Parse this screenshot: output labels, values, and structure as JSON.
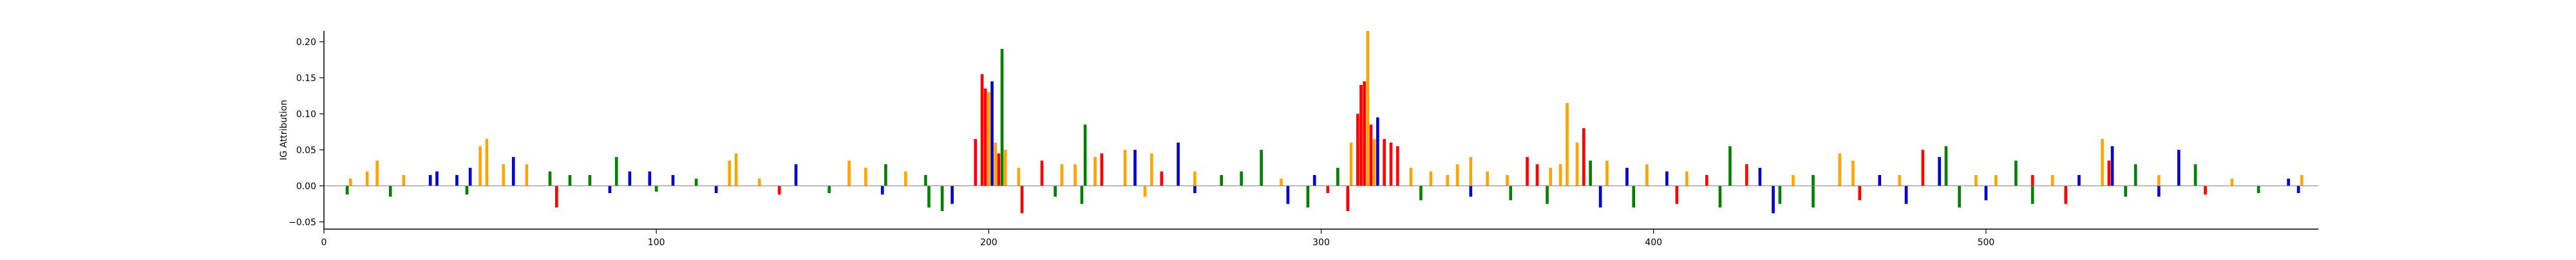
{
  "chart_data": {
    "type": "bar",
    "title": "",
    "xlabel": "",
    "ylabel": "IG Attribution",
    "xlim": [
      0,
      600
    ],
    "ylim": [
      -0.06,
      0.215
    ],
    "x_ticks": [
      0,
      100,
      200,
      300,
      400,
      500
    ],
    "y_ticks": [
      -0.05,
      0.0,
      0.05,
      0.1,
      0.15,
      0.2
    ],
    "y_tick_labels": [
      "−0.05",
      "0.00",
      "0.05",
      "0.10",
      "0.15",
      "0.20"
    ],
    "grid": false,
    "base_colors": {
      "A": "#008000",
      "C": "#0000cc",
      "G": "#ffa500",
      "T": "#ff0000"
    },
    "positions": [
      {
        "x": 8,
        "base": "G",
        "value": 0.01
      },
      {
        "x": 13,
        "base": "G",
        "value": 0.02
      },
      {
        "x": 16,
        "base": "G",
        "value": 0.035
      },
      {
        "x": 24,
        "base": "G",
        "value": 0.015
      },
      {
        "x": 32,
        "base": "C",
        "value": 0.015
      },
      {
        "x": 34,
        "base": "C",
        "value": 0.02
      },
      {
        "x": 40,
        "base": "C",
        "value": 0.015
      },
      {
        "x": 44,
        "base": "C",
        "value": 0.025
      },
      {
        "x": 47,
        "base": "G",
        "value": 0.055
      },
      {
        "x": 49,
        "base": "G",
        "value": 0.065
      },
      {
        "x": 54,
        "base": "G",
        "value": 0.03
      },
      {
        "x": 57,
        "base": "C",
        "value": 0.04
      },
      {
        "x": 61,
        "base": "G",
        "value": 0.03
      },
      {
        "x": 68,
        "base": "A",
        "value": 0.02
      },
      {
        "x": 74,
        "base": "A",
        "value": 0.015
      },
      {
        "x": 80,
        "base": "A",
        "value": 0.015
      },
      {
        "x": 88,
        "base": "A",
        "value": 0.04
      },
      {
        "x": 92,
        "base": "C",
        "value": 0.02
      },
      {
        "x": 98,
        "base": "C",
        "value": 0.02
      },
      {
        "x": 105,
        "base": "C",
        "value": 0.015
      },
      {
        "x": 112,
        "base": "A",
        "value": 0.01
      },
      {
        "x": 122,
        "base": "G",
        "value": 0.035
      },
      {
        "x": 124,
        "base": "G",
        "value": 0.045
      },
      {
        "x": 131,
        "base": "G",
        "value": 0.01
      },
      {
        "x": 142,
        "base": "C",
        "value": 0.03
      },
      {
        "x": 158,
        "base": "G",
        "value": 0.035
      },
      {
        "x": 163,
        "base": "G",
        "value": 0.025
      },
      {
        "x": 169,
        "base": "A",
        "value": 0.03
      },
      {
        "x": 175,
        "base": "G",
        "value": 0.02
      },
      {
        "x": 181,
        "base": "A",
        "value": 0.015
      },
      {
        "x": 196,
        "base": "T",
        "value": 0.065
      },
      {
        "x": 198,
        "base": "T",
        "value": 0.155
      },
      {
        "x": 199,
        "base": "T",
        "value": 0.135
      },
      {
        "x": 200,
        "base": "G",
        "value": 0.13
      },
      {
        "x": 201,
        "base": "C",
        "value": 0.145
      },
      {
        "x": 202,
        "base": "G",
        "value": 0.06
      },
      {
        "x": 203,
        "base": "T",
        "value": 0.045
      },
      {
        "x": 204,
        "base": "A",
        "value": 0.19
      },
      {
        "x": 205,
        "base": "G",
        "value": 0.05
      },
      {
        "x": 209,
        "base": "G",
        "value": 0.025
      },
      {
        "x": 216,
        "base": "T",
        "value": 0.035
      },
      {
        "x": 222,
        "base": "G",
        "value": 0.03
      },
      {
        "x": 226,
        "base": "G",
        "value": 0.03
      },
      {
        "x": 229,
        "base": "A",
        "value": 0.085
      },
      {
        "x": 232,
        "base": "G",
        "value": 0.04
      },
      {
        "x": 234,
        "base": "T",
        "value": 0.045
      },
      {
        "x": 241,
        "base": "G",
        "value": 0.05
      },
      {
        "x": 244,
        "base": "C",
        "value": 0.05
      },
      {
        "x": 249,
        "base": "G",
        "value": 0.045
      },
      {
        "x": 252,
        "base": "T",
        "value": 0.02
      },
      {
        "x": 257,
        "base": "C",
        "value": 0.06
      },
      {
        "x": 262,
        "base": "G",
        "value": 0.02
      },
      {
        "x": 270,
        "base": "A",
        "value": 0.015
      },
      {
        "x": 276,
        "base": "A",
        "value": 0.02
      },
      {
        "x": 282,
        "base": "A",
        "value": 0.05
      },
      {
        "x": 288,
        "base": "G",
        "value": 0.01
      },
      {
        "x": 298,
        "base": "C",
        "value": 0.015
      },
      {
        "x": 305,
        "base": "A",
        "value": 0.025
      },
      {
        "x": 309,
        "base": "G",
        "value": 0.06
      },
      {
        "x": 311,
        "base": "T",
        "value": 0.1
      },
      {
        "x": 312,
        "base": "T",
        "value": 0.14
      },
      {
        "x": 313,
        "base": "T",
        "value": 0.145
      },
      {
        "x": 314,
        "base": "G",
        "value": 0.215
      },
      {
        "x": 315,
        "base": "T",
        "value": 0.085
      },
      {
        "x": 316,
        "base": "G",
        "value": 0.065
      },
      {
        "x": 317,
        "base": "C",
        "value": 0.095
      },
      {
        "x": 319,
        "base": "T",
        "value": 0.065
      },
      {
        "x": 321,
        "base": "T",
        "value": 0.06
      },
      {
        "x": 323,
        "base": "T",
        "value": 0.055
      },
      {
        "x": 327,
        "base": "G",
        "value": 0.025
      },
      {
        "x": 333,
        "base": "G",
        "value": 0.02
      },
      {
        "x": 338,
        "base": "G",
        "value": 0.015
      },
      {
        "x": 341,
        "base": "G",
        "value": 0.03
      },
      {
        "x": 345,
        "base": "G",
        "value": 0.04
      },
      {
        "x": 350,
        "base": "G",
        "value": 0.02
      },
      {
        "x": 356,
        "base": "G",
        "value": 0.015
      },
      {
        "x": 362,
        "base": "T",
        "value": 0.04
      },
      {
        "x": 365,
        "base": "T",
        "value": 0.03
      },
      {
        "x": 369,
        "base": "G",
        "value": 0.025
      },
      {
        "x": 372,
        "base": "G",
        "value": 0.03
      },
      {
        "x": 374,
        "base": "G",
        "value": 0.115
      },
      {
        "x": 377,
        "base": "G",
        "value": 0.06
      },
      {
        "x": 379,
        "base": "T",
        "value": 0.08
      },
      {
        "x": 381,
        "base": "A",
        "value": 0.035
      },
      {
        "x": 386,
        "base": "G",
        "value": 0.035
      },
      {
        "x": 392,
        "base": "C",
        "value": 0.025
      },
      {
        "x": 398,
        "base": "G",
        "value": 0.03
      },
      {
        "x": 404,
        "base": "C",
        "value": 0.02
      },
      {
        "x": 410,
        "base": "G",
        "value": 0.02
      },
      {
        "x": 416,
        "base": "T",
        "value": 0.015
      },
      {
        "x": 423,
        "base": "A",
        "value": 0.055
      },
      {
        "x": 428,
        "base": "T",
        "value": 0.03
      },
      {
        "x": 432,
        "base": "C",
        "value": 0.025
      },
      {
        "x": 442,
        "base": "G",
        "value": 0.015
      },
      {
        "x": 448,
        "base": "A",
        "value": 0.015
      },
      {
        "x": 456,
        "base": "G",
        "value": 0.045
      },
      {
        "x": 460,
        "base": "G",
        "value": 0.035
      },
      {
        "x": 468,
        "base": "C",
        "value": 0.015
      },
      {
        "x": 474,
        "base": "G",
        "value": 0.015
      },
      {
        "x": 481,
        "base": "T",
        "value": 0.05
      },
      {
        "x": 486,
        "base": "C",
        "value": 0.04
      },
      {
        "x": 488,
        "base": "A",
        "value": 0.055
      },
      {
        "x": 497,
        "base": "G",
        "value": 0.015
      },
      {
        "x": 503,
        "base": "G",
        "value": 0.015
      },
      {
        "x": 509,
        "base": "A",
        "value": 0.035
      },
      {
        "x": 514,
        "base": "T",
        "value": 0.015
      },
      {
        "x": 520,
        "base": "G",
        "value": 0.015
      },
      {
        "x": 528,
        "base": "C",
        "value": 0.015
      },
      {
        "x": 535,
        "base": "G",
        "value": 0.065
      },
      {
        "x": 537,
        "base": "T",
        "value": 0.035
      },
      {
        "x": 538,
        "base": "C",
        "value": 0.055
      },
      {
        "x": 545,
        "base": "A",
        "value": 0.03
      },
      {
        "x": 552,
        "base": "G",
        "value": 0.015
      },
      {
        "x": 558,
        "base": "C",
        "value": 0.05
      },
      {
        "x": 563,
        "base": "A",
        "value": 0.03
      },
      {
        "x": 574,
        "base": "G",
        "value": 0.01
      },
      {
        "x": 591,
        "base": "C",
        "value": 0.01
      },
      {
        "x": 595,
        "base": "G",
        "value": 0.015
      },
      {
        "x": 7,
        "base": "A",
        "value": -0.012
      },
      {
        "x": 20,
        "base": "A",
        "value": -0.015
      },
      {
        "x": 43,
        "base": "A",
        "value": -0.012
      },
      {
        "x": 70,
        "base": "T",
        "value": -0.03
      },
      {
        "x": 86,
        "base": "C",
        "value": -0.01
      },
      {
        "x": 100,
        "base": "A",
        "value": -0.008
      },
      {
        "x": 118,
        "base": "C",
        "value": -0.01
      },
      {
        "x": 137,
        "base": "T",
        "value": -0.012
      },
      {
        "x": 152,
        "base": "A",
        "value": -0.01
      },
      {
        "x": 168,
        "base": "C",
        "value": -0.012
      },
      {
        "x": 182,
        "base": "A",
        "value": -0.03
      },
      {
        "x": 186,
        "base": "A",
        "value": -0.035
      },
      {
        "x": 189,
        "base": "C",
        "value": -0.025
      },
      {
        "x": 210,
        "base": "T",
        "value": -0.038
      },
      {
        "x": 220,
        "base": "A",
        "value": -0.015
      },
      {
        "x": 228,
        "base": "A",
        "value": -0.025
      },
      {
        "x": 247,
        "base": "G",
        "value": -0.015
      },
      {
        "x": 262,
        "base": "C",
        "value": -0.01
      },
      {
        "x": 290,
        "base": "C",
        "value": -0.025
      },
      {
        "x": 296,
        "base": "A",
        "value": -0.03
      },
      {
        "x": 302,
        "base": "T",
        "value": -0.01
      },
      {
        "x": 308,
        "base": "T",
        "value": -0.035
      },
      {
        "x": 330,
        "base": "A",
        "value": -0.02
      },
      {
        "x": 345,
        "base": "C",
        "value": -0.015
      },
      {
        "x": 357,
        "base": "A",
        "value": -0.02
      },
      {
        "x": 368,
        "base": "A",
        "value": -0.025
      },
      {
        "x": 384,
        "base": "C",
        "value": -0.03
      },
      {
        "x": 394,
        "base": "A",
        "value": -0.03
      },
      {
        "x": 407,
        "base": "T",
        "value": -0.025
      },
      {
        "x": 420,
        "base": "A",
        "value": -0.03
      },
      {
        "x": 436,
        "base": "C",
        "value": -0.038
      },
      {
        "x": 438,
        "base": "A",
        "value": -0.025
      },
      {
        "x": 448,
        "base": "A",
        "value": -0.03
      },
      {
        "x": 462,
        "base": "T",
        "value": -0.02
      },
      {
        "x": 476,
        "base": "C",
        "value": -0.025
      },
      {
        "x": 492,
        "base": "A",
        "value": -0.03
      },
      {
        "x": 500,
        "base": "C",
        "value": -0.02
      },
      {
        "x": 514,
        "base": "A",
        "value": -0.025
      },
      {
        "x": 524,
        "base": "T",
        "value": -0.025
      },
      {
        "x": 542,
        "base": "A",
        "value": -0.015
      },
      {
        "x": 552,
        "base": "C",
        "value": -0.015
      },
      {
        "x": 566,
        "base": "T",
        "value": -0.012
      },
      {
        "x": 582,
        "base": "A",
        "value": -0.01
      },
      {
        "x": 594,
        "base": "C",
        "value": -0.01
      }
    ]
  }
}
